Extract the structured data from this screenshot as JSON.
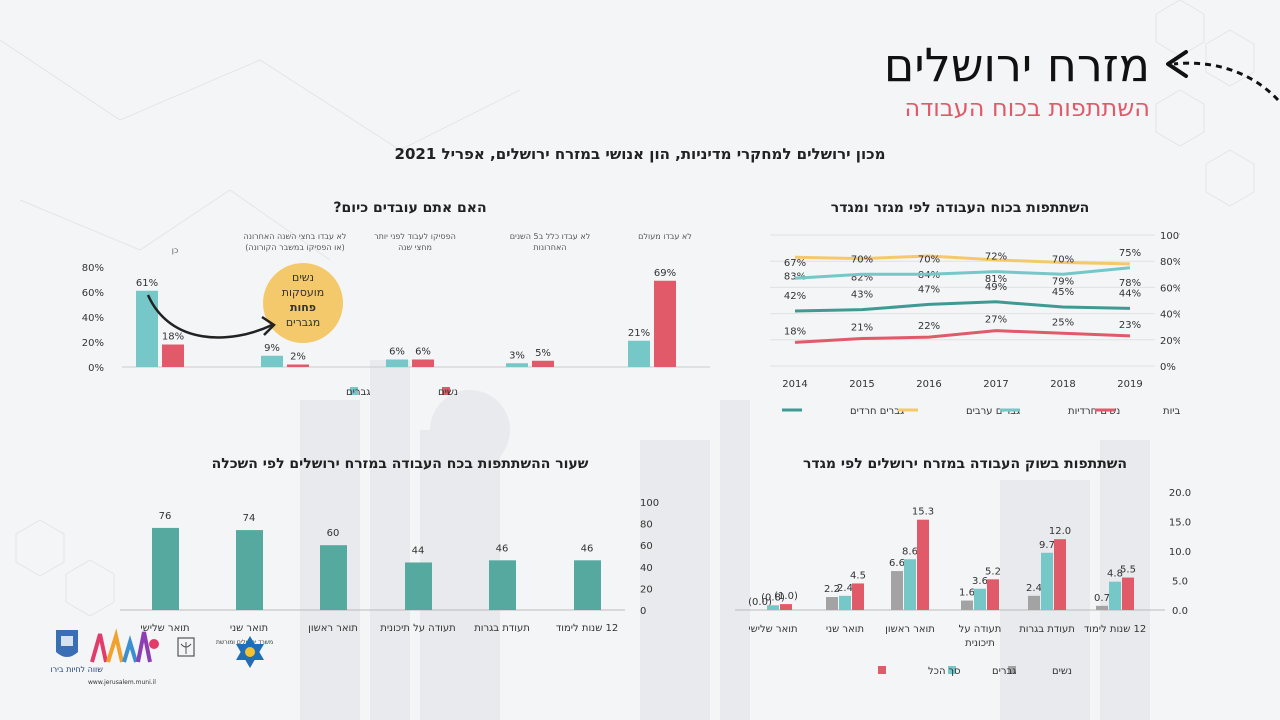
{
  "header": {
    "title": "מזרח ירושלים",
    "subtitle": "השתתפות בכוח העבודה",
    "source": "מכון ירושלים למחקרי מדיניות, הון אנושי במזרח ירושלים, אפריל 2021"
  },
  "logos": {
    "jerusalem_caption": "שווה לחיות בירושלים",
    "url": "www.jerusalem.muni.il",
    "ministry": "משרד ירושלים ומורשת"
  },
  "colors": {
    "teal": "#76c7c8",
    "dark_teal": "#3f9a94",
    "pink": "#e05a6a",
    "yellow": "#f4c96b",
    "gray": "#a3a3a3",
    "bar_teal": "#55a99f"
  },
  "chart_data": [
    {
      "id": "working-today",
      "type": "bar",
      "title": "האם אתם עובדים כיום?",
      "categories": [
        "כן",
        "לא עבדו בחצי השנה האחרונה (או הפסיקו במשבר הקורונה)",
        "הפסיקו לעבוד לפני יותר מחצי שנה",
        "לא עבדו כלל ב5 השנים האחרונות",
        "לא עבדו מעולם"
      ],
      "series": [
        {
          "name": "גברים",
          "values": [
            61,
            9,
            6,
            3,
            21
          ],
          "labels": [
            "61%",
            "9%",
            "6%",
            "3%",
            "21%"
          ]
        },
        {
          "name": "נשים",
          "values": [
            18,
            2,
            6,
            5,
            69
          ],
          "labels": [
            "18%",
            "2%",
            "6%",
            "5%",
            "69%"
          ]
        }
      ],
      "y_ticks": [
        "0%",
        "20%",
        "40%",
        "60%",
        "80%"
      ],
      "ylim": [
        0,
        80
      ],
      "annotation": [
        "נשים",
        "מועסקות",
        "פחות",
        "מגברים"
      ],
      "legend_position": "bottom"
    },
    {
      "id": "participation-trend",
      "type": "line",
      "title": "השתתפות בכוח העבודה לפי מגזר ומגדר",
      "x": [
        "2014",
        "2015",
        "2016",
        "2017",
        "2018",
        "2019"
      ],
      "series": [
        {
          "name": "גברים חרדים",
          "values": [
            42,
            43,
            47,
            49,
            45,
            44
          ],
          "labels": [
            "42%",
            "43%",
            "47%",
            "49%",
            "45%",
            "44%"
          ]
        },
        {
          "name": "גברים ערבים",
          "values": [
            83,
            82,
            84,
            81,
            79,
            78
          ],
          "labels": [
            "83%",
            "82%",
            "84%",
            "81%",
            "79%",
            "78%"
          ]
        },
        {
          "name": "נשים חרדיות",
          "values": [
            67,
            70,
            70,
            72,
            70,
            75
          ],
          "labels": [
            "67%",
            "70%",
            "70%",
            "72%",
            "70%",
            "75%"
          ]
        },
        {
          "name": "נשים ערביות",
          "values": [
            18,
            21,
            22,
            27,
            25,
            23
          ],
          "labels": [
            "18%",
            "21%",
            "22%",
            "27%",
            "25%",
            "23%"
          ]
        }
      ],
      "y_ticks": [
        "0%",
        "20%",
        "40%",
        "60%",
        "80%",
        "100%"
      ],
      "ylim": [
        0,
        100
      ],
      "legend_position": "bottom"
    },
    {
      "id": "education-rate",
      "type": "bar",
      "title": "שעור ההשתתפות בכח העבודה במזרח ירושלים לפי השכלה",
      "categories": [
        "תואר שלישי",
        "תואר שני",
        "תואר ראשון",
        "תעודה על תיכונית",
        "תעודת בגרות",
        "12 שנות לימוד"
      ],
      "values": [
        76,
        74,
        60,
        44,
        46,
        46
      ],
      "labels": [
        "76",
        "74",
        "60",
        "44",
        "46",
        "46"
      ],
      "y_ticks": [
        "0",
        "20",
        "40",
        "60",
        "80",
        "100"
      ],
      "ylim": [
        0,
        100
      ]
    },
    {
      "id": "labor-market-gender",
      "type": "bar",
      "title": "השתתפות בשוק העבודה במזרח ירושלים לפי מגדר",
      "categories": [
        "תואר שלישי",
        "תואר שני",
        "תואר ראשון",
        "תעודה על תיכונית",
        "תעודת בגרות",
        "12 שנות לימוד"
      ],
      "series": [
        {
          "name": "נשים",
          "values": [
            0.0,
            2.2,
            6.6,
            1.6,
            2.4,
            0.7
          ],
          "labels": [
            "(0.0)",
            "2.2",
            "6.6",
            "1.6",
            "2.4",
            "0.7"
          ]
        },
        {
          "name": "גברים",
          "values": [
            0.8,
            2.4,
            8.6,
            3.6,
            9.7,
            4.8
          ],
          "labels": [
            "(0.8)",
            "2.4",
            "8.6",
            "3.6",
            "9.7",
            "4.8"
          ]
        },
        {
          "name": "סך הכל",
          "values": [
            1.0,
            4.5,
            15.3,
            5.2,
            12.0,
            5.5
          ],
          "labels": [
            "(1.0)",
            "4.5",
            "15.3",
            "5.2",
            "12.0",
            "5.5"
          ]
        }
      ],
      "y_ticks": [
        "0.0",
        "5.0",
        "10.0",
        "15.0",
        "20.0"
      ],
      "ylim": [
        0,
        20
      ],
      "legend_position": "bottom"
    }
  ]
}
